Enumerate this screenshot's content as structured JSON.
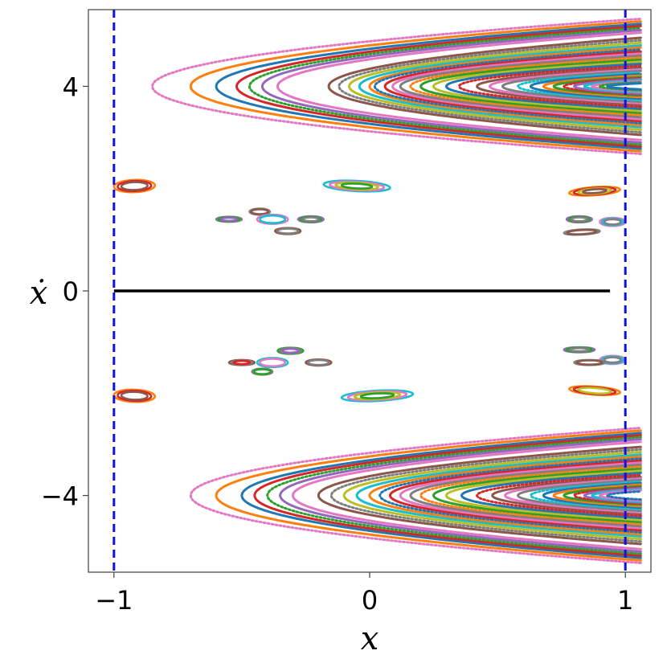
{
  "chart_data": {
    "type": "scatter",
    "title": "",
    "xlabel": "x",
    "ylabel": "ẋ",
    "xlim": [
      -1.1,
      1.1
    ],
    "ylim": [
      -5.5,
      5.5
    ],
    "xticks": [
      {
        "value": -1,
        "label": "−1"
      },
      {
        "value": 0,
        "label": "0"
      },
      {
        "value": 1,
        "label": "1"
      }
    ],
    "yticks": [
      {
        "value": -4,
        "label": "−4"
      },
      {
        "value": 0,
        "label": "0"
      },
      {
        "value": 4,
        "label": "4"
      }
    ],
    "grid": false,
    "legend": "none",
    "reference_lines": [
      {
        "kind": "vertical",
        "x": -1,
        "style": "dashed",
        "color": "#1010e0"
      },
      {
        "kind": "vertical",
        "x": 1,
        "style": "dashed",
        "color": "#1010e0"
      },
      {
        "kind": "horizontal",
        "y": 0,
        "x_range": [
          -1,
          0.94
        ],
        "style": "solid",
        "color": "#000000"
      }
    ],
    "series": [
      {
        "shape": "parabolic-band",
        "vertex_y": 4.0,
        "vertex_x": [
          -0.85,
          -0.7,
          -0.6,
          -0.52,
          -0.47,
          -0.42,
          -0.36,
          -0.16,
          -0.12,
          -0.08,
          -0.04,
          0.0,
          0.02,
          0.06,
          0.09,
          0.12,
          0.16,
          0.2,
          0.25,
          0.3,
          0.35,
          0.42,
          0.47,
          0.52,
          0.58,
          0.63,
          0.68,
          0.72,
          0.76,
          0.8,
          0.84,
          0.87,
          0.9,
          0.93
        ],
        "half_width_at_x1": [
          1.32,
          1.27,
          1.22,
          1.18,
          1.14,
          1.1,
          1.05,
          0.95,
          0.9,
          0.85,
          0.8,
          0.76,
          0.72,
          0.68,
          0.64,
          0.6,
          0.56,
          0.52,
          0.48,
          0.44,
          0.4,
          0.36,
          0.33,
          0.3,
          0.27,
          0.24,
          0.21,
          0.18,
          0.16,
          0.14,
          0.12,
          0.1,
          0.08,
          0.06
        ],
        "colors": [
          "#e377c2",
          "#ff7f0e",
          "#1f77b4",
          "#d62728",
          "#2ca02c",
          "#9467bd",
          "#e377c2",
          "#8c564b",
          "#7f7f7f",
          "#bcbd22",
          "#17becf",
          "#ff7f0e",
          "#1f77b4",
          "#d62728",
          "#e377c2",
          "#7f7f7f",
          "#ff7f0e",
          "#2ca02c",
          "#bcbd22",
          "#1f77b4",
          "#d62728",
          "#8c564b",
          "#e377c2",
          "#7f7f7f",
          "#17becf",
          "#1f77b4",
          "#ff7f0e",
          "#2ca02c",
          "#d62728",
          "#9467bd",
          "#17becf",
          "#e377c2",
          "#2ca02c",
          "#1f77b4"
        ]
      },
      {
        "shape": "parabolic-band",
        "vertex_y": -4.0,
        "vertex_x": [
          -0.7,
          -0.6,
          -0.5,
          -0.45,
          -0.4,
          -0.35,
          -0.3,
          -0.2,
          -0.15,
          -0.1,
          -0.05,
          0.0,
          0.04,
          0.08,
          0.12,
          0.16,
          0.2,
          0.25,
          0.3,
          0.36,
          0.42,
          0.48,
          0.53,
          0.58,
          0.63,
          0.68,
          0.72,
          0.76,
          0.8,
          0.84,
          0.87,
          0.9,
          0.93
        ],
        "half_width_at_x1": [
          1.32,
          1.27,
          1.22,
          1.18,
          1.14,
          1.1,
          1.05,
          0.95,
          0.9,
          0.85,
          0.8,
          0.76,
          0.72,
          0.68,
          0.64,
          0.6,
          0.56,
          0.52,
          0.48,
          0.44,
          0.4,
          0.36,
          0.33,
          0.3,
          0.27,
          0.24,
          0.21,
          0.18,
          0.16,
          0.14,
          0.12,
          0.1,
          0.08
        ],
        "colors": [
          "#e377c2",
          "#ff7f0e",
          "#1f77b4",
          "#d62728",
          "#2ca02c",
          "#9467bd",
          "#e377c2",
          "#8c564b",
          "#7f7f7f",
          "#bcbd22",
          "#17becf",
          "#ff7f0e",
          "#1f77b4",
          "#d62728",
          "#e377c2",
          "#7f7f7f",
          "#ff7f0e",
          "#2ca02c",
          "#bcbd22",
          "#1f77b4",
          "#d62728",
          "#8c564b",
          "#e377c2",
          "#7f7f7f",
          "#17becf",
          "#1f77b4",
          "#ff7f0e",
          "#2ca02c",
          "#d62728",
          "#9467bd",
          "#17becf",
          "#e377c2",
          "#1f77b4"
        ]
      },
      {
        "shape": "island-ellipses",
        "islands": [
          {
            "cx": -0.92,
            "cy": 2.05,
            "rx": 0.08,
            "ry": 0.12,
            "tilt": -2,
            "colors": [
              "#ff7f0e",
              "#d62728",
              "#8c564b"
            ]
          },
          {
            "cx": -0.05,
            "cy": 2.05,
            "rx": 0.13,
            "ry": 0.1,
            "tilt": 3,
            "colors": [
              "#17becf",
              "#e377c2",
              "#bcbd22",
              "#2ca02c"
            ]
          },
          {
            "cx": -0.43,
            "cy": 1.55,
            "rx": 0.04,
            "ry": 0.06,
            "tilt": 0,
            "colors": [
              "#7f7f7f",
              "#8c564b"
            ]
          },
          {
            "cx": -0.38,
            "cy": 1.4,
            "rx": 0.06,
            "ry": 0.09,
            "tilt": 0,
            "colors": [
              "#e377c2",
              "#17becf"
            ]
          },
          {
            "cx": -0.55,
            "cy": 1.4,
            "rx": 0.05,
            "ry": 0.05,
            "tilt": 0,
            "colors": [
              "#7f7f7f",
              "#2ca02c",
              "#9467bd"
            ]
          },
          {
            "cx": -0.23,
            "cy": 1.4,
            "rx": 0.05,
            "ry": 0.06,
            "tilt": 0,
            "colors": [
              "#9467bd",
              "#2ca02c",
              "#7f7f7f"
            ]
          },
          {
            "cx": -0.32,
            "cy": 1.17,
            "rx": 0.05,
            "ry": 0.06,
            "tilt": 0,
            "colors": [
              "#8c564b",
              "#7f7f7f"
            ]
          },
          {
            "cx": 0.88,
            "cy": 1.95,
            "rx": 0.1,
            "ry": 0.08,
            "tilt": -4,
            "colors": [
              "#ff7f0e",
              "#d62728",
              "#bcbd22",
              "#8c564b"
            ]
          },
          {
            "cx": 0.82,
            "cy": 1.4,
            "rx": 0.05,
            "ry": 0.06,
            "tilt": 0,
            "colors": [
              "#9467bd",
              "#2ca02c",
              "#7f7f7f"
            ]
          },
          {
            "cx": 0.95,
            "cy": 1.35,
            "rx": 0.05,
            "ry": 0.08,
            "tilt": 0,
            "colors": [
              "#e377c2",
              "#17becf",
              "#7f7f7f"
            ]
          },
          {
            "cx": 0.83,
            "cy": 1.15,
            "rx": 0.07,
            "ry": 0.05,
            "tilt": -3,
            "colors": [
              "#7f7f7f",
              "#8c564b"
            ]
          },
          {
            "cx": 0.03,
            "cy": -2.05,
            "rx": 0.14,
            "ry": 0.1,
            "tilt": -3,
            "colors": [
              "#17becf",
              "#e377c2",
              "#bcbd22",
              "#2ca02c"
            ]
          },
          {
            "cx": -0.92,
            "cy": -2.05,
            "rx": 0.08,
            "ry": 0.12,
            "tilt": 2,
            "colors": [
              "#ff7f0e",
              "#d62728",
              "#8c564b"
            ]
          },
          {
            "cx": 0.88,
            "cy": -1.95,
            "rx": 0.1,
            "ry": 0.08,
            "tilt": 4,
            "colors": [
              "#ff7f0e",
              "#d62728",
              "#bcbd22"
            ]
          },
          {
            "cx": -0.5,
            "cy": -1.4,
            "rx": 0.05,
            "ry": 0.05,
            "tilt": 0,
            "colors": [
              "#8c564b",
              "#7f7f7f",
              "#d62728"
            ]
          },
          {
            "cx": -0.38,
            "cy": -1.4,
            "rx": 0.06,
            "ry": 0.09,
            "tilt": 0,
            "colors": [
              "#17becf",
              "#e377c2"
            ]
          },
          {
            "cx": -0.2,
            "cy": -1.4,
            "rx": 0.05,
            "ry": 0.06,
            "tilt": 0,
            "colors": [
              "#8c564b",
              "#7f7f7f"
            ]
          },
          {
            "cx": -0.31,
            "cy": -1.17,
            "rx": 0.05,
            "ry": 0.06,
            "tilt": 0,
            "colors": [
              "#2ca02c",
              "#7f7f7f",
              "#9467bd"
            ]
          },
          {
            "cx": -0.42,
            "cy": -1.58,
            "rx": 0.04,
            "ry": 0.06,
            "tilt": 0,
            "colors": [
              "#7f7f7f",
              "#2ca02c"
            ]
          },
          {
            "cx": 0.82,
            "cy": -1.15,
            "rx": 0.06,
            "ry": 0.05,
            "tilt": 0,
            "colors": [
              "#9467bd",
              "#2ca02c",
              "#7f7f7f"
            ]
          },
          {
            "cx": 0.95,
            "cy": -1.35,
            "rx": 0.05,
            "ry": 0.08,
            "tilt": 0,
            "colors": [
              "#e377c2",
              "#17becf",
              "#7f7f7f"
            ]
          },
          {
            "cx": 0.86,
            "cy": -1.4,
            "rx": 0.06,
            "ry": 0.05,
            "tilt": 0,
            "colors": [
              "#7f7f7f",
              "#8c564b"
            ]
          }
        ]
      }
    ]
  }
}
